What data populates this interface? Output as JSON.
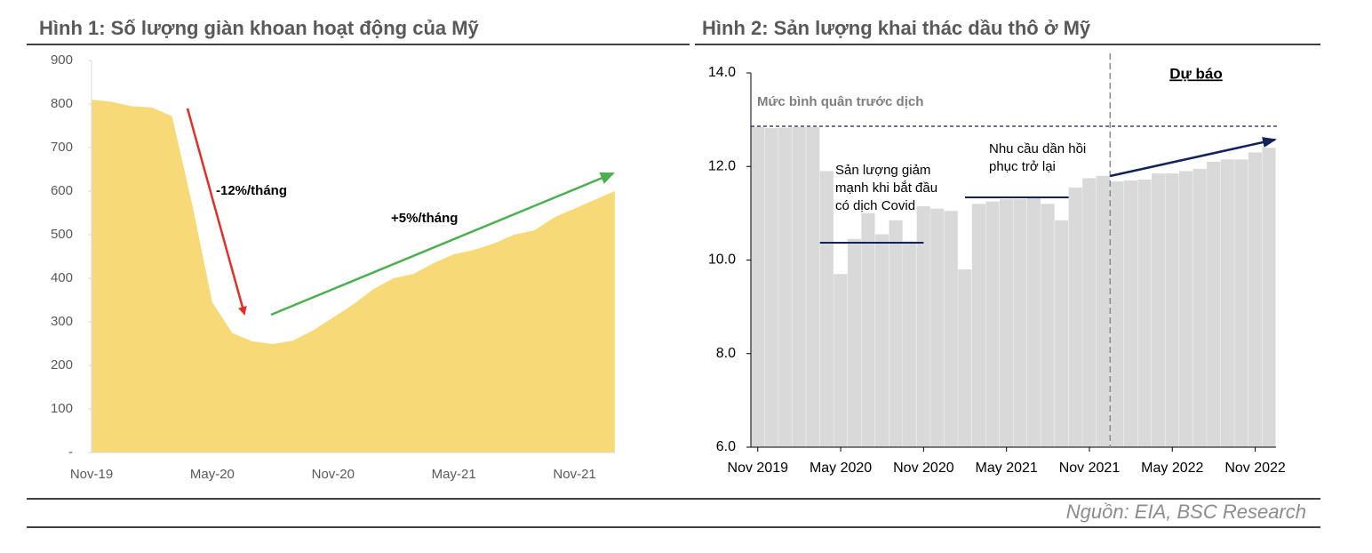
{
  "chart_data": [
    {
      "type": "area",
      "title": "Hình 1: Số lượng giàn khoan hoạt động của Mỹ",
      "color": "#f8d978",
      "categories": [
        "Nov-19",
        null,
        null,
        null,
        null,
        null,
        "May-20",
        null,
        null,
        null,
        null,
        null,
        "Nov-20",
        null,
        null,
        null,
        null,
        null,
        "May-21",
        null,
        null,
        null,
        null,
        null,
        "Nov-21",
        null,
        null
      ],
      "values": [
        810,
        805,
        795,
        792,
        772,
        570,
        345,
        274,
        255,
        249,
        257,
        280,
        310,
        340,
        375,
        400,
        410,
        435,
        455,
        465,
        480,
        500,
        510,
        540,
        560,
        580,
        600
      ],
      "ylim": [
        0,
        900
      ],
      "yticks": [
        {
          "value": 0,
          "label": "-"
        },
        100,
        200,
        300,
        400,
        500,
        600,
        700,
        800,
        900
      ],
      "annotations": [
        "-12%/tháng",
        "+5%/tháng"
      ]
    },
    {
      "type": "bar",
      "title": "Hình 2: Sản lượng khai thác dầu thô ở Mỹ",
      "color": "#d9d9d9",
      "categories": [
        "Nov 2019",
        null,
        null,
        null,
        null,
        null,
        "May 2020",
        null,
        null,
        null,
        null,
        null,
        "Nov 2020",
        null,
        null,
        null,
        null,
        null,
        "May 2021",
        null,
        null,
        null,
        null,
        null,
        "Nov 2021",
        null,
        null,
        null,
        null,
        null,
        "May 2022",
        null,
        null,
        null,
        null,
        null,
        "Nov 2022",
        null
      ],
      "values": [
        12.85,
        12.82,
        12.83,
        12.84,
        12.84,
        11.9,
        9.7,
        10.45,
        11.0,
        10.55,
        10.85,
        10.4,
        11.15,
        11.1,
        11.05,
        9.8,
        11.2,
        11.25,
        11.3,
        11.3,
        11.35,
        11.2,
        10.85,
        11.55,
        11.75,
        11.8,
        11.68,
        11.7,
        11.72,
        11.85,
        11.85,
        11.9,
        11.95,
        12.1,
        12.15,
        12.15,
        12.3,
        12.4
      ],
      "ylim": [
        6,
        14
      ],
      "yticks": [
        {
          "value": 6,
          "label": "6.0"
        },
        {
          "value": 8,
          "label": "8.0"
        },
        {
          "value": 10,
          "label": "10.0"
        },
        {
          "value": 12,
          "label": "12.0"
        },
        {
          "value": 14,
          "label": "14.0"
        }
      ],
      "reference_line": {
        "label": "Mức bình quân trước dịch",
        "value": 12.86
      },
      "annotations": [
        {
          "lines": [
            "Sản lượng giảm",
            "mạnh khi bắt đầu",
            "có dịch Covid"
          ],
          "level": 10.37
        },
        {
          "lines": [
            "Nhu cầu dần hồi",
            "phục trở lại"
          ],
          "level": 11.34
        }
      ],
      "forecast_label": "Dự báo"
    }
  ],
  "source": "Nguồn: EIA, BSC Research"
}
